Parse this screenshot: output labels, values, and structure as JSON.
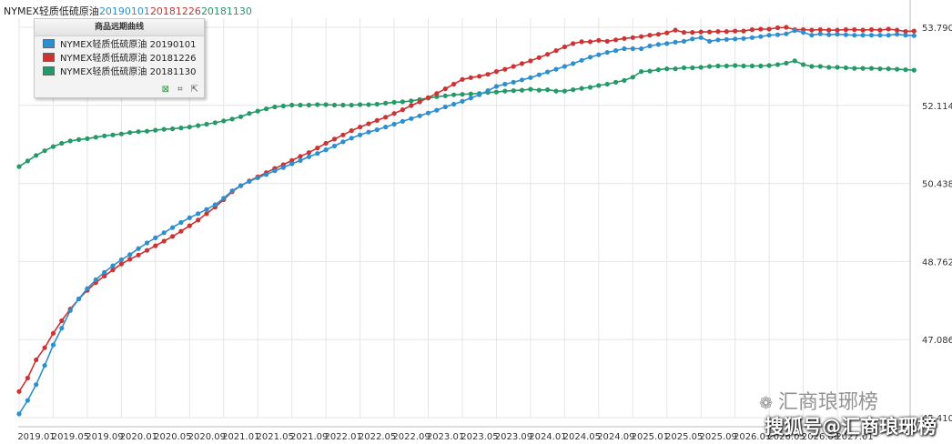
{
  "header": {
    "name": "NYMEX轻质低硫原油",
    "dates": [
      "20190101",
      "20181226",
      "20181130"
    ]
  },
  "legend": {
    "title": "商品远期曲线",
    "tools": [
      "⊠",
      "⌗",
      "⇱"
    ]
  },
  "watermarks": {
    "account": "汇商琅琊榜",
    "source": "搜狐号@汇商琅琊榜"
  },
  "colors": {
    "series_20190101": "#2e8fd0",
    "series_20181226": "#cc3333",
    "series_20181130": "#259968",
    "grid": "#e6e6e6"
  },
  "chart_data": {
    "type": "line",
    "x_tick_labels": [
      "2019.01",
      "2019.05",
      "2019.09",
      "2020.01",
      "2020.05",
      "2020.09",
      "2021.01",
      "2021.05",
      "2021.09",
      "2022.01",
      "2022.05",
      "2022.09",
      "2023.01",
      "2023.05",
      "2023.09",
      "2024.01",
      "2024.05",
      "2024.09",
      "2025.01",
      "2025.05",
      "2025.09",
      "2026.01",
      "2026.05",
      "2026.09",
      "2027.01"
    ],
    "y_tick_labels": [
      "45.4100",
      "47.0860",
      "48.7620",
      "50.4380",
      "52.1140",
      "53.7900"
    ],
    "ylim": [
      45.41,
      53.79
    ],
    "grid": true,
    "legend_position": "top-left",
    "series": [
      {
        "name": "NYMEX轻质低硫原油 20190101",
        "start_month_index": 0,
        "values": [
          45.49,
          45.78,
          46.12,
          46.53,
          46.97,
          47.33,
          47.71,
          47.96,
          48.18,
          48.37,
          48.53,
          48.67,
          48.8,
          48.91,
          49.04,
          49.16,
          49.27,
          49.38,
          49.49,
          49.6,
          49.7,
          49.79,
          49.88,
          49.98,
          50.12,
          50.28,
          50.39,
          50.48,
          50.56,
          50.63,
          50.71,
          50.78,
          50.86,
          50.93,
          51.01,
          51.08,
          51.16,
          51.24,
          51.33,
          51.41,
          51.48,
          51.54,
          51.59,
          51.65,
          51.71,
          51.77,
          51.83,
          51.89,
          51.95,
          52.01,
          52.08,
          52.14,
          52.2,
          52.27,
          52.34,
          52.43,
          52.52,
          52.57,
          52.61,
          52.66,
          52.71,
          52.77,
          52.83,
          52.89,
          52.95,
          53.01,
          53.08,
          53.15,
          53.2,
          53.25,
          53.29,
          53.33,
          53.33,
          53.33,
          53.39,
          53.42,
          53.44,
          53.47,
          53.49,
          53.54,
          53.57,
          53.49,
          53.52,
          53.53,
          53.54,
          53.55,
          53.57,
          53.59,
          53.62,
          53.63,
          53.65,
          53.72,
          53.68,
          53.62,
          53.65,
          53.63,
          53.64,
          53.63,
          53.62,
          53.62,
          53.62,
          53.62,
          53.62,
          53.64,
          53.62,
          53.61
        ]
      },
      {
        "name": "NYMEX轻质低硫原油 20181226",
        "start_month_index": 0,
        "values": [
          45.97,
          46.26,
          46.65,
          46.91,
          47.22,
          47.49,
          47.74,
          47.96,
          48.14,
          48.31,
          48.45,
          48.58,
          48.71,
          48.81,
          48.9,
          49.0,
          49.1,
          49.2,
          49.3,
          49.41,
          49.53,
          49.65,
          49.79,
          49.93,
          50.09,
          50.26,
          50.39,
          50.49,
          50.58,
          50.67,
          50.76,
          50.84,
          50.93,
          51.02,
          51.1,
          51.2,
          51.3,
          51.39,
          51.48,
          51.57,
          51.65,
          51.72,
          51.79,
          51.86,
          51.94,
          52.02,
          52.11,
          52.19,
          52.28,
          52.37,
          52.47,
          52.57,
          52.67,
          52.71,
          52.74,
          52.78,
          52.84,
          52.89,
          52.95,
          53.01,
          53.07,
          53.14,
          53.21,
          53.29,
          53.37,
          53.44,
          53.48,
          53.48,
          53.51,
          53.49,
          53.52,
          53.55,
          53.57,
          53.59,
          53.62,
          53.64,
          53.67,
          53.73,
          53.68,
          53.68,
          53.69,
          53.69,
          53.7,
          53.7,
          53.71,
          53.71,
          53.74,
          53.75,
          53.75,
          53.78,
          53.79,
          53.74,
          53.74,
          53.73,
          53.74,
          53.73,
          53.73,
          53.74,
          53.74,
          53.73,
          53.74,
          53.73,
          53.75,
          53.73,
          53.7,
          53.71
        ]
      },
      {
        "name": "NYMEX轻质低硫原油 20181130",
        "start_month_index": 0,
        "values": [
          50.8,
          50.92,
          51.04,
          51.14,
          51.23,
          51.3,
          51.35,
          51.38,
          51.4,
          51.43,
          51.46,
          51.48,
          51.5,
          51.53,
          51.55,
          51.56,
          51.58,
          51.6,
          51.61,
          51.63,
          51.65,
          51.68,
          51.71,
          51.74,
          51.78,
          51.82,
          51.87,
          51.94,
          51.99,
          52.04,
          52.08,
          52.1,
          52.12,
          52.12,
          52.12,
          52.13,
          52.13,
          52.12,
          52.12,
          52.12,
          52.13,
          52.13,
          52.14,
          52.16,
          52.18,
          52.19,
          52.21,
          52.24,
          52.27,
          52.3,
          52.32,
          52.34,
          52.35,
          52.36,
          52.37,
          52.39,
          52.4,
          52.42,
          52.43,
          52.44,
          52.46,
          52.44,
          52.45,
          52.42,
          52.42,
          52.45,
          52.48,
          52.5,
          52.54,
          52.57,
          52.61,
          52.65,
          52.72,
          52.84,
          52.85,
          52.88,
          52.9,
          52.9,
          52.92,
          52.92,
          52.93,
          52.95,
          52.96,
          52.96,
          52.97,
          52.96,
          52.96,
          52.96,
          52.97,
          52.99,
          53.02,
          53.07,
          52.99,
          52.95,
          52.95,
          52.93,
          52.93,
          52.92,
          52.91,
          52.91,
          52.91,
          52.9,
          52.9,
          52.89,
          52.88,
          52.87
        ]
      }
    ]
  }
}
